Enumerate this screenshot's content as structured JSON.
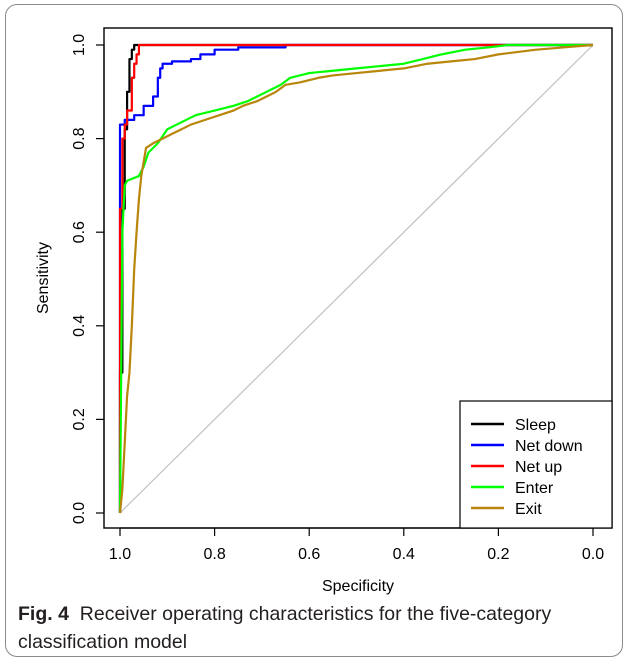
{
  "caption": {
    "label": "Fig. 4",
    "text": "Receiver operating characteristics for the five-category classification model"
  },
  "chart_data": {
    "type": "line",
    "title": "",
    "xlabel": "Specificity",
    "ylabel": "Sensitivity",
    "xlim": [
      1.0,
      0.0
    ],
    "ylim": [
      0.0,
      1.0
    ],
    "x_reversed": true,
    "x_ticks": [
      "1.0",
      "0.8",
      "0.6",
      "0.4",
      "0.2",
      "0.0"
    ],
    "y_ticks": [
      "0.0",
      "0.2",
      "0.4",
      "0.6",
      "0.8",
      "1.0"
    ],
    "grid": false,
    "legend_position": "bottom-right",
    "diagonal_reference": true,
    "reference_color": "#c0c0c0",
    "series": [
      {
        "name": "Sleep",
        "color": "#000000",
        "points": [
          [
            1.0,
            0.0
          ],
          [
            1.0,
            0.3
          ],
          [
            0.995,
            0.3
          ],
          [
            0.995,
            0.65
          ],
          [
            0.99,
            0.65
          ],
          [
            0.99,
            0.82
          ],
          [
            0.985,
            0.82
          ],
          [
            0.985,
            0.9
          ],
          [
            0.98,
            0.9
          ],
          [
            0.98,
            0.97
          ],
          [
            0.975,
            0.97
          ],
          [
            0.975,
            0.99
          ],
          [
            0.97,
            0.99
          ],
          [
            0.97,
            1.0
          ],
          [
            0.0,
            1.0
          ]
        ]
      },
      {
        "name": "Net down",
        "color": "#0000ff",
        "points": [
          [
            1.0,
            0.0
          ],
          [
            1.0,
            0.83
          ],
          [
            0.99,
            0.83
          ],
          [
            0.99,
            0.84
          ],
          [
            0.97,
            0.84
          ],
          [
            0.97,
            0.85
          ],
          [
            0.95,
            0.85
          ],
          [
            0.95,
            0.87
          ],
          [
            0.93,
            0.87
          ],
          [
            0.93,
            0.89
          ],
          [
            0.92,
            0.89
          ],
          [
            0.92,
            0.91
          ],
          [
            0.92,
            0.93
          ],
          [
            0.915,
            0.93
          ],
          [
            0.915,
            0.95
          ],
          [
            0.91,
            0.95
          ],
          [
            0.91,
            0.96
          ],
          [
            0.89,
            0.96
          ],
          [
            0.89,
            0.965
          ],
          [
            0.85,
            0.965
          ],
          [
            0.85,
            0.97
          ],
          [
            0.83,
            0.97
          ],
          [
            0.83,
            0.98
          ],
          [
            0.8,
            0.98
          ],
          [
            0.8,
            0.99
          ],
          [
            0.75,
            0.99
          ],
          [
            0.75,
            0.995
          ],
          [
            0.65,
            0.995
          ],
          [
            0.65,
            1.0
          ],
          [
            0.0,
            1.0
          ]
        ]
      },
      {
        "name": "Net up",
        "color": "#ff0000",
        "points": [
          [
            1.0,
            0.0
          ],
          [
            1.0,
            0.65
          ],
          [
            0.995,
            0.65
          ],
          [
            0.995,
            0.8
          ],
          [
            0.99,
            0.8
          ],
          [
            0.99,
            0.83
          ],
          [
            0.985,
            0.83
          ],
          [
            0.985,
            0.86
          ],
          [
            0.975,
            0.86
          ],
          [
            0.975,
            0.93
          ],
          [
            0.97,
            0.93
          ],
          [
            0.97,
            0.96
          ],
          [
            0.965,
            0.96
          ],
          [
            0.965,
            0.98
          ],
          [
            0.96,
            0.98
          ],
          [
            0.96,
            1.0
          ],
          [
            0.0,
            1.0
          ]
        ]
      },
      {
        "name": "Enter",
        "color": "#00ff00",
        "points": [
          [
            1.0,
            0.0
          ],
          [
            0.995,
            0.6
          ],
          [
            0.99,
            0.7
          ],
          [
            0.985,
            0.71
          ],
          [
            0.96,
            0.72
          ],
          [
            0.95,
            0.74
          ],
          [
            0.94,
            0.77
          ],
          [
            0.92,
            0.79
          ],
          [
            0.9,
            0.82
          ],
          [
            0.88,
            0.83
          ],
          [
            0.84,
            0.85
          ],
          [
            0.8,
            0.86
          ],
          [
            0.76,
            0.87
          ],
          [
            0.73,
            0.88
          ],
          [
            0.71,
            0.89
          ],
          [
            0.69,
            0.9
          ],
          [
            0.67,
            0.91
          ],
          [
            0.66,
            0.915
          ],
          [
            0.64,
            0.93
          ],
          [
            0.6,
            0.94
          ],
          [
            0.55,
            0.945
          ],
          [
            0.5,
            0.95
          ],
          [
            0.45,
            0.955
          ],
          [
            0.4,
            0.96
          ],
          [
            0.36,
            0.97
          ],
          [
            0.32,
            0.98
          ],
          [
            0.27,
            0.99
          ],
          [
            0.22,
            0.995
          ],
          [
            0.18,
            1.0
          ],
          [
            0.0,
            1.0
          ]
        ]
      },
      {
        "name": "Exit",
        "color": "#b8860b",
        "points": [
          [
            1.0,
            0.0
          ],
          [
            0.995,
            0.05
          ],
          [
            0.99,
            0.15
          ],
          [
            0.985,
            0.25
          ],
          [
            0.98,
            0.3
          ],
          [
            0.975,
            0.4
          ],
          [
            0.97,
            0.52
          ],
          [
            0.965,
            0.6
          ],
          [
            0.96,
            0.67
          ],
          [
            0.955,
            0.72
          ],
          [
            0.95,
            0.75
          ],
          [
            0.945,
            0.78
          ],
          [
            0.93,
            0.79
          ],
          [
            0.91,
            0.8
          ],
          [
            0.89,
            0.81
          ],
          [
            0.87,
            0.82
          ],
          [
            0.85,
            0.83
          ],
          [
            0.82,
            0.84
          ],
          [
            0.79,
            0.85
          ],
          [
            0.76,
            0.86
          ],
          [
            0.74,
            0.87
          ],
          [
            0.71,
            0.88
          ],
          [
            0.69,
            0.89
          ],
          [
            0.67,
            0.9
          ],
          [
            0.65,
            0.915
          ],
          [
            0.62,
            0.92
          ],
          [
            0.58,
            0.93
          ],
          [
            0.55,
            0.935
          ],
          [
            0.5,
            0.94
          ],
          [
            0.45,
            0.945
          ],
          [
            0.4,
            0.95
          ],
          [
            0.35,
            0.96
          ],
          [
            0.3,
            0.965
          ],
          [
            0.25,
            0.97
          ],
          [
            0.2,
            0.98
          ],
          [
            0.12,
            0.99
          ],
          [
            0.06,
            0.995
          ],
          [
            0.0,
            1.0
          ]
        ]
      }
    ]
  }
}
